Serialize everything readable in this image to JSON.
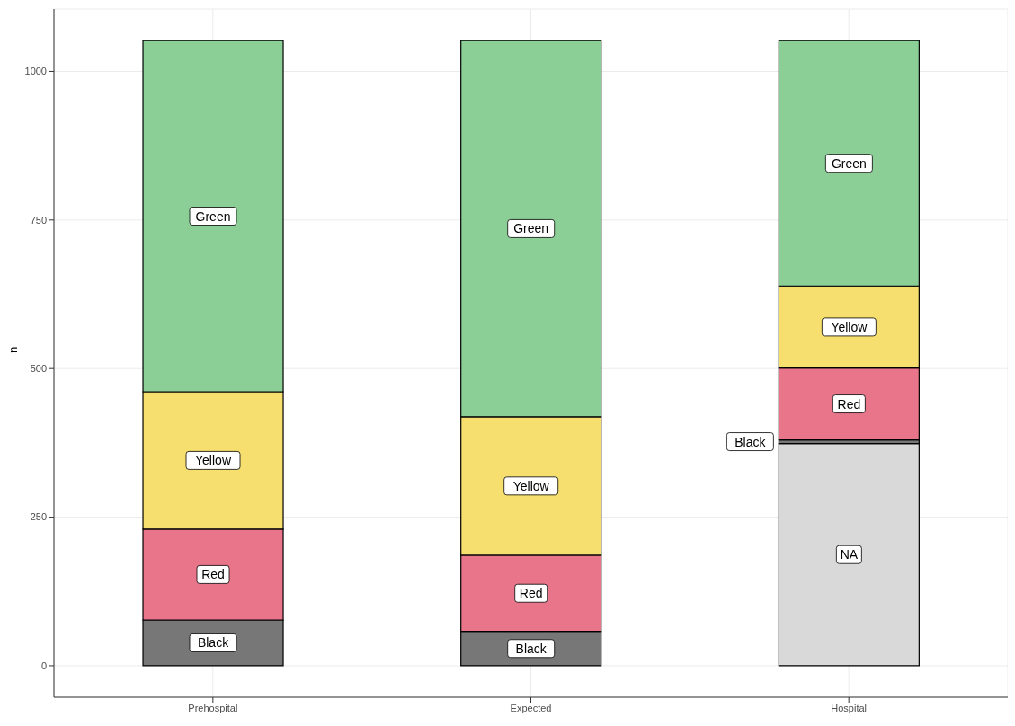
{
  "chart_data": {
    "type": "bar",
    "stacked": true,
    "ylabel": "n",
    "categories": [
      "Prehospital",
      "Expected",
      "Hospital"
    ],
    "series": [
      {
        "name": "NA",
        "color": "#d9d9d9",
        "values": [
          null,
          null,
          374
        ]
      },
      {
        "name": "Black",
        "color": "#777777",
        "values": [
          77,
          58,
          6
        ]
      },
      {
        "name": "Red",
        "color": "#e8758a",
        "values": [
          153,
          128,
          121
        ]
      },
      {
        "name": "Yellow",
        "color": "#f6df6e",
        "values": [
          231,
          233,
          138
        ]
      },
      {
        "name": "Green",
        "color": "#8ccf96",
        "values": [
          591,
          633,
          413
        ]
      }
    ],
    "ylim": [
      -53,
      1105
    ],
    "yticks": [
      0,
      250,
      500,
      750,
      1000
    ],
    "grid": true,
    "legend": false
  }
}
